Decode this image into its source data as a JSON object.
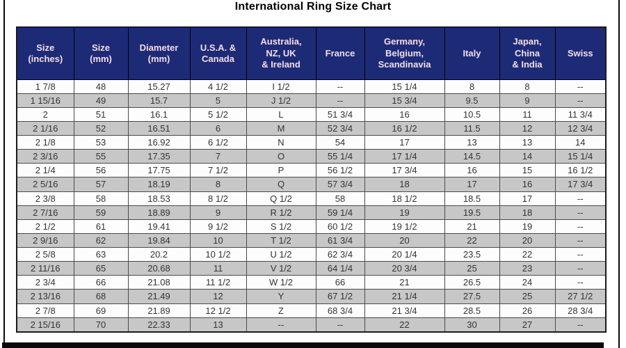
{
  "title": "International Ring Size Chart",
  "colors": {
    "header_background": "#1d2b76",
    "header_text": "#f6dce8",
    "row_white": "#fdfdfd",
    "row_gray": "#c7c7c7",
    "frame": "#0a0a0a",
    "data_text": "#333333"
  },
  "chart_data": {
    "type": "table",
    "title": "International Ring Size Chart",
    "columns": [
      "Size (inches)",
      "Size (mm)",
      "Diameter (mm)",
      "U.S.A. & Canada",
      "Australia, NZ, UK & Ireland",
      "France",
      "Germany, Belgium, Scandinavia",
      "Italy",
      "Japan, China & India",
      "Swiss"
    ],
    "column_header_lines": [
      [
        "Size",
        "(inches)"
      ],
      [
        "Size",
        "(mm)"
      ],
      [
        "Diameter",
        "(mm)"
      ],
      [
        "U.S.A. &",
        "Canada"
      ],
      [
        "Australia,",
        "NZ, UK",
        "& Ireland"
      ],
      [
        "France"
      ],
      [
        "Germany,",
        "Belgium,",
        "Scandinavia"
      ],
      [
        "Italy"
      ],
      [
        "Japan,",
        "China",
        "& India"
      ],
      [
        "Swiss"
      ]
    ],
    "rows": [
      [
        "1 7/8",
        "48",
        "15.27",
        "4 1/2",
        "I 1/2",
        "--",
        "15 1/4",
        "8",
        "8",
        "--"
      ],
      [
        "1 15/16",
        "49",
        "15.7",
        "5",
        "J 1/2",
        "--",
        "15 3/4",
        "9.5",
        "9",
        "--"
      ],
      [
        "2",
        "51",
        "16.1",
        "5 1/2",
        "L",
        "51 3/4",
        "16",
        "10.5",
        "11",
        "11 3/4"
      ],
      [
        "2 1/16",
        "52",
        "16.51",
        "6",
        "M",
        "52 3/4",
        "16 1/2",
        "11.5",
        "12",
        "12 3/4"
      ],
      [
        "2 1/8",
        "53",
        "16.92",
        "6 1/2",
        "N",
        "54",
        "17",
        "13",
        "13",
        "14"
      ],
      [
        "2 3/16",
        "55",
        "17.35",
        "7",
        "O",
        "55 1/4",
        "17 1/4",
        "14.5",
        "14",
        "15 1/4"
      ],
      [
        "2 1/4",
        "56",
        "17.75",
        "7 1/2",
        "P",
        "56 1/2",
        "17 3/4",
        "16",
        "15",
        "16 1/2"
      ],
      [
        "2 5/16",
        "57",
        "18.19",
        "8",
        "Q",
        "57 3/4",
        "18",
        "17",
        "16",
        "17 3/4"
      ],
      [
        "2 3/8",
        "58",
        "18.53",
        "8 1/2",
        "Q 1/2",
        "58",
        "18 1/2",
        "18.5",
        "17",
        "--"
      ],
      [
        "2 7/16",
        "59",
        "18.89",
        "9",
        "R 1/2",
        "59 1/4",
        "19",
        "19.5",
        "18",
        "--"
      ],
      [
        "2 1/2",
        "61",
        "19.41",
        "9 1/2",
        "S 1/2",
        "60 1/2",
        "19 1/2",
        "21",
        "19",
        "--"
      ],
      [
        "2 9/16",
        "62",
        "19.84",
        "10",
        "T 1/2",
        "61 3/4",
        "20",
        "22",
        "20",
        "--"
      ],
      [
        "2 5/8",
        "63",
        "20.2",
        "10 1/2",
        "U 1/2",
        "62 3/4",
        "20 1/4",
        "23.5",
        "22",
        "--"
      ],
      [
        "2 11/16",
        "65",
        "20.68",
        "11",
        "V 1/2",
        "64 1/4",
        "20 3/4",
        "25",
        "23",
        "--"
      ],
      [
        "2 3/4",
        "66",
        "21.08",
        "11 1/2",
        "W 1/2",
        "66",
        "21",
        "26.5",
        "24",
        "--"
      ],
      [
        "2 13/16",
        "68",
        "21.49",
        "12",
        "Y",
        "67 1/2",
        "21 1/4",
        "27.5",
        "25",
        "27 1/2"
      ],
      [
        "2 7/8",
        "69",
        "21.89",
        "12 1/2",
        "Z",
        "68 3/4",
        "21 3/4",
        "28.5",
        "26",
        "28 3/4"
      ],
      [
        "2 15/16",
        "70",
        "22.33",
        "13",
        "--",
        "--",
        "22",
        "30",
        "27",
        "--"
      ]
    ]
  }
}
